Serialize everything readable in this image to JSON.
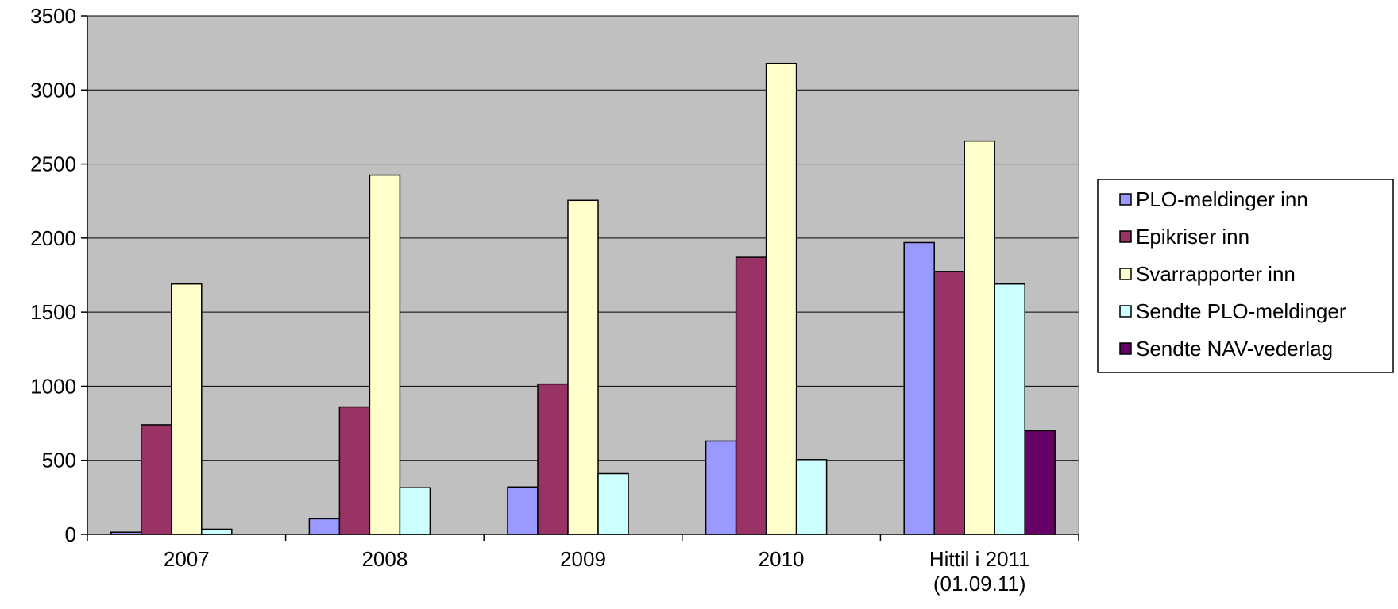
{
  "chart_data": {
    "type": "bar",
    "title": "",
    "xlabel": "",
    "ylabel": "",
    "ylim": [
      0,
      3500
    ],
    "yticks": [
      0,
      500,
      1000,
      1500,
      2000,
      2500,
      3000,
      3500
    ],
    "grid": true,
    "legend_position": "right",
    "categories": [
      [
        "2007"
      ],
      [
        "2008"
      ],
      [
        "2009"
      ],
      [
        "2010"
      ],
      [
        "Hittil i 2011",
        "(01.09.11)"
      ]
    ],
    "series": [
      {
        "name": "PLO-meldinger inn",
        "color": "#9999ff",
        "values": [
          15,
          105,
          320,
          630,
          1970
        ]
      },
      {
        "name": "Epikriser inn",
        "color": "#993366",
        "values": [
          740,
          860,
          1015,
          1870,
          1775
        ]
      },
      {
        "name": "Svarrapporter inn",
        "color": "#ffffcc",
        "values": [
          1690,
          2425,
          2255,
          3180,
          2655
        ]
      },
      {
        "name": "Sendte PLO-meldinger",
        "color": "#ccffff",
        "values": [
          35,
          315,
          410,
          505,
          1690
        ]
      },
      {
        "name": "Sendte NAV-vederlag",
        "color": "#660066",
        "values": [
          0,
          0,
          0,
          0,
          700
        ]
      }
    ],
    "plot_background": "#c0c0c0"
  }
}
